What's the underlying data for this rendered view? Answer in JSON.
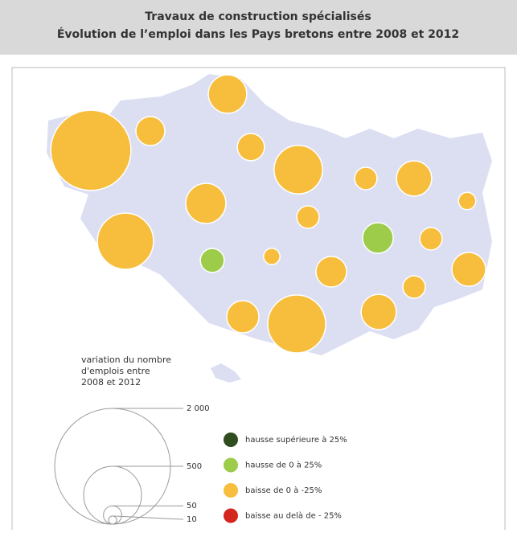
{
  "header": {
    "title": [
      "Travaux de construction spécialisés",
      "Évolution de l’emploi dans les Pays bretons entre 2008 et 2012"
    ]
  },
  "map": {
    "circles": [
      {
        "value": 960,
        "color": "#f7be3d"
      },
      {
        "value": 125,
        "color": "#f7be3d"
      },
      {
        "value": 220,
        "color": "#f7be3d"
      },
      {
        "value": 110,
        "color": "#f7be3d"
      },
      {
        "value": 350,
        "color": "#f7be3d"
      },
      {
        "value": 75,
        "color": "#f7be3d"
      },
      {
        "value": 185,
        "color": "#f7be3d"
      },
      {
        "value": 45,
        "color": "#f7be3d"
      },
      {
        "value": 240,
        "color": "#f7be3d"
      },
      {
        "value": 75,
        "color": "#f7be3d"
      },
      {
        "value": 470,
        "color": "#f7be3d"
      },
      {
        "value": 140,
        "color": "#9ccc4a"
      },
      {
        "value": 75,
        "color": "#f7be3d"
      },
      {
        "value": 40,
        "color": "#f7be3d"
      },
      {
        "value": 140,
        "color": "#f7be3d"
      },
      {
        "value": 170,
        "color": "#f7be3d"
      },
      {
        "value": 85,
        "color": "#9ccc4a"
      },
      {
        "value": 75,
        "color": "#f7be3d"
      },
      {
        "value": 155,
        "color": "#f7be3d"
      },
      {
        "value": 500,
        "color": "#f7be3d"
      },
      {
        "value": 185,
        "color": "#f7be3d"
      }
    ],
    "size_legend": {
      "title": [
        "variation du nombre",
        "d'emplois entre",
        "2008 et 2012"
      ],
      "ticks": [
        {
          "value": 2000,
          "label": "2 000"
        },
        500,
        50,
        10
      ]
    },
    "color_legend": [
      {
        "name": "hausse supérieure à 25%",
        "color": "#2f4d1f"
      },
      {
        "name": "hausse de 0 à 25%",
        "color": "#9ccc4a"
      },
      {
        "name": "baisse de 0 à -25%",
        "color": "#f7be3d"
      },
      {
        "name": "baisse au delà de - 25%",
        "color": "#d4261f"
      }
    ]
  }
}
